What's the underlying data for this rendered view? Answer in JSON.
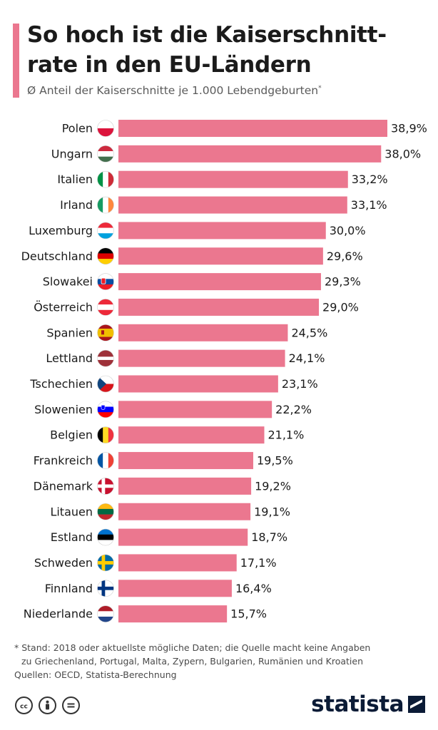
{
  "header": {
    "title_line1": "So hoch ist die Kaiserschnitt-",
    "title_line2": "rate in den EU-Ländern",
    "subtitle": "Ø Anteil der Kaiserschnitte je 1.000 Lebendgeburten",
    "subtitle_mark": "*"
  },
  "chart_data": {
    "type": "bar",
    "orientation": "horizontal",
    "title": "So hoch ist die Kaiserschnittrate in den EU-Ländern",
    "subtitle": "Ø Anteil der Kaiserschnitte je 1.000 Lebendgeburten",
    "unit": "%",
    "xlim": [
      0,
      38.9
    ],
    "bar_color": "#eb778f",
    "categories": [
      "Polen",
      "Ungarn",
      "Italien",
      "Irland",
      "Luxemburg",
      "Deutschland",
      "Slowakei",
      "Österreich",
      "Spanien",
      "Lettland",
      "Tschechien",
      "Slowenien",
      "Belgien",
      "Frankreich",
      "Dänemark",
      "Litauen",
      "Estland",
      "Schweden",
      "Finnland",
      "Niederlande"
    ],
    "values": [
      38.9,
      38.0,
      33.2,
      33.1,
      30.0,
      29.6,
      29.3,
      29.0,
      24.5,
      24.1,
      23.1,
      22.2,
      21.1,
      19.5,
      19.2,
      19.1,
      18.7,
      17.1,
      16.4,
      15.7
    ],
    "value_labels": [
      "38,9%",
      "38,0%",
      "33,2%",
      "33,1%",
      "30,0%",
      "29,6%",
      "29,3%",
      "29,0%",
      "24,5%",
      "24,1%",
      "23,1%",
      "22,2%",
      "21,1%",
      "19,5%",
      "19,2%",
      "19,1%",
      "18,7%",
      "17,1%",
      "16,4%",
      "15,7%"
    ],
    "flags": [
      "flag-poland-icon",
      "flag-hungary-icon",
      "flag-italy-icon",
      "flag-ireland-icon",
      "flag-luxembourg-icon",
      "flag-germany-icon",
      "flag-slovakia-icon",
      "flag-austria-icon",
      "flag-spain-icon",
      "flag-latvia-icon",
      "flag-czechia-icon",
      "flag-slovenia-icon",
      "flag-belgium-icon",
      "flag-france-icon",
      "flag-denmark-icon",
      "flag-lithuania-icon",
      "flag-estonia-icon",
      "flag-sweden-icon",
      "flag-finland-icon",
      "flag-netherlands-icon"
    ]
  },
  "footer": {
    "note_line1": "* Stand: 2018 oder aktuellste mögliche Daten; die Quelle macht keine Angaben",
    "note_line2": "zu Griechenland, Portugal, Malta, Zypern, Bulgarien, Rumänien und Kroatien",
    "sources": "Quellen: OECD, Statista-Berechnung",
    "brand": "statista",
    "license_icons": [
      "cc-icon",
      "by-icon",
      "nd-icon"
    ]
  }
}
